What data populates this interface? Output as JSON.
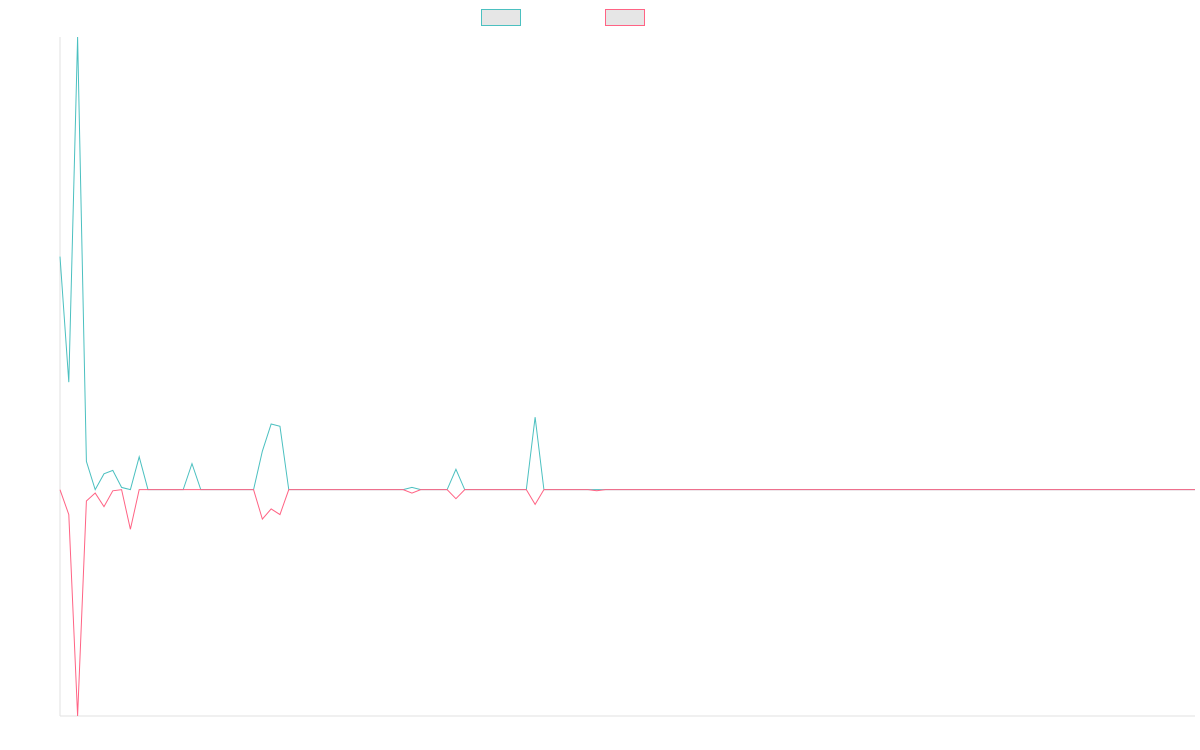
{
  "chart_data": {
    "type": "line",
    "title": "",
    "xlabel": "",
    "ylabel": "",
    "grid": false,
    "legend_position": "top-center",
    "x": [
      0,
      1,
      2,
      3,
      4,
      5,
      6,
      7,
      8,
      9,
      10,
      11,
      12,
      13,
      14,
      15,
      16,
      17,
      18,
      19,
      20,
      21,
      22,
      23,
      24,
      25,
      26,
      27,
      28,
      29,
      30,
      31,
      32,
      33,
      34,
      35,
      36,
      37,
      38,
      39,
      40,
      41,
      42,
      43,
      44,
      45,
      46,
      47,
      48,
      49,
      50,
      51,
      52,
      53,
      54,
      55,
      56,
      57,
      58,
      59,
      60,
      61,
      62,
      63,
      64,
      65,
      66,
      67,
      68,
      69,
      70,
      71,
      72,
      73,
      74,
      75,
      76,
      77,
      78,
      79,
      80,
      81,
      82,
      83,
      84,
      85,
      86,
      87,
      88,
      89,
      90,
      91,
      92,
      93,
      94,
      95,
      96,
      97,
      98,
      99,
      100,
      101,
      102,
      103,
      104,
      105,
      106,
      107,
      108,
      109,
      110,
      111,
      112,
      113,
      114,
      115,
      116,
      117,
      118,
      119,
      120,
      121,
      122,
      123,
      124,
      125,
      126,
      127,
      128,
      129
    ],
    "ylim": [
      -1,
      2
    ],
    "series": [
      {
        "name": "",
        "color": "#4bc0c0",
        "fill": "#e6e6e6",
        "values": [
          1.03,
          0.475,
          2.0,
          0.125,
          0.0,
          0.07,
          0.085,
          0.01,
          0.0,
          0.145,
          0.0,
          0.0,
          0.0,
          0.0,
          0.0,
          0.115,
          0.0,
          0.0,
          0.0,
          0.0,
          0.0,
          0.0,
          0.0,
          0.17,
          0.29,
          0.28,
          0.0,
          0.0,
          0.0,
          0.0,
          0.0,
          0.0,
          0.0,
          0.0,
          0.0,
          0.0,
          0.0,
          0.0,
          0.0,
          0.0,
          0.01,
          0.0,
          0.0,
          0.0,
          0.0,
          0.09,
          0.0,
          0.0,
          0.0,
          0.0,
          0.0,
          0.0,
          0.0,
          0.0,
          0.32,
          0.0,
          0.0,
          0.0,
          0.0,
          0.0,
          0.0,
          0.0,
          0.0,
          0.0,
          0.0,
          0.0,
          0.0,
          0.0,
          0.0,
          0.0,
          0.0,
          0.0,
          0.0,
          0.0,
          0.0,
          0.0,
          0.0,
          0.0,
          0.0,
          0.0,
          0.0,
          0.0,
          0.0,
          0.0,
          0.0,
          0.0,
          0.0,
          0.0,
          0.0,
          0.0,
          0.0,
          0.0,
          0.0,
          0.0,
          0.0,
          0.0,
          0.0,
          0.0,
          0.0,
          0.0,
          0.0,
          0.0,
          0.0,
          0.0,
          0.0,
          0.0,
          0.0,
          0.0,
          0.0,
          0.0,
          0.0,
          0.0,
          0.0,
          0.0,
          0.0,
          0.0,
          0.0,
          0.0,
          0.0,
          0.0,
          0.0,
          0.0,
          0.0,
          0.0,
          0.0,
          0.0,
          0.0,
          0.0,
          0.0,
          0.0
        ]
      },
      {
        "name": "",
        "color": "#ff6384",
        "fill": "#e6e6e6",
        "values": [
          0.0,
          -0.11,
          -1.0,
          -0.05,
          -0.015,
          -0.075,
          -0.005,
          0.0,
          -0.175,
          0.0,
          0.0,
          0.0,
          0.0,
          0.0,
          0.0,
          0.0,
          0.0,
          0.0,
          0.0,
          0.0,
          0.0,
          0.0,
          0.0,
          -0.13,
          -0.085,
          -0.11,
          0.0,
          0.0,
          0.0,
          0.0,
          0.0,
          0.0,
          0.0,
          0.0,
          0.0,
          0.0,
          0.0,
          0.0,
          0.0,
          0.0,
          -0.015,
          0.0,
          0.0,
          0.0,
          0.0,
          -0.04,
          0.0,
          0.0,
          0.0,
          0.0,
          0.0,
          0.0,
          0.0,
          0.0,
          -0.065,
          0.0,
          0.0,
          0.0,
          0.0,
          0.0,
          0.0,
          -0.005,
          0.0,
          0.0,
          0.0,
          0.0,
          0.0,
          0.0,
          0.0,
          0.0,
          0.0,
          0.0,
          0.0,
          0.0,
          0.0,
          0.0,
          0.0,
          0.0,
          0.0,
          0.0,
          0.0,
          0.0,
          0.0,
          0.0,
          0.0,
          0.0,
          0.0,
          0.0,
          0.0,
          0.0,
          0.0,
          0.0,
          0.0,
          0.0,
          0.0,
          0.0,
          0.0,
          0.0,
          0.0,
          0.0,
          0.0,
          0.0,
          0.0,
          0.0,
          0.0,
          0.0,
          0.0,
          0.0,
          0.0,
          0.0,
          0.0,
          0.0,
          0.0,
          0.0,
          0.0,
          0.0,
          0.0,
          0.0,
          0.0,
          0.0,
          0.0,
          0.0,
          0.0,
          0.0,
          0.0,
          0.0,
          0.0,
          0.0,
          0.0,
          0.0
        ]
      }
    ]
  }
}
